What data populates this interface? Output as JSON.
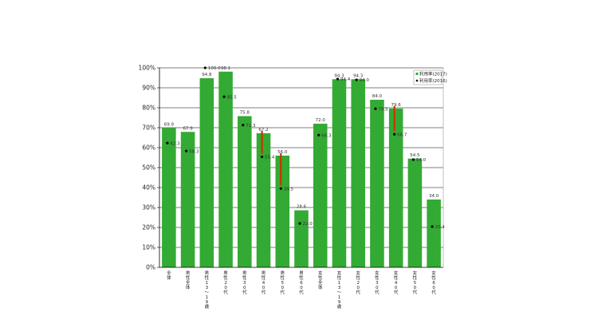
{
  "chart_data": {
    "type": "bar",
    "title": "",
    "xlabel": "",
    "ylabel": "",
    "ylim": [
      0,
      100
    ],
    "yticks": [
      "0%",
      "10%",
      "20%",
      "30%",
      "40%",
      "50%",
      "60%",
      "70%",
      "80%",
      "90%",
      "100%"
    ],
    "grid": true,
    "legend_position": "top-right",
    "categories": [
      "全体",
      "男性全体",
      "男性13〜19歳",
      "男性20代",
      "男性30代",
      "男性40代",
      "男性50代",
      "男性60代",
      "女性全体",
      "女性13〜19歳",
      "女性20代",
      "女性30代",
      "女性40代",
      "女性50代",
      "女性60代"
    ],
    "series": [
      {
        "name": "利用率(2017)",
        "kind": "bar",
        "color": "#33aa33",
        "values": [
          69.9,
          67.9,
          94.8,
          98.1,
          75.8,
          67.2,
          56.0,
          28.6,
          72.0,
          94.3,
          94.3,
          84.0,
          79.6,
          54.5,
          34.0
        ],
        "labels": [
          "69.9",
          "67.9",
          "94.8",
          "98.1",
          "75.8",
          "67.2",
          "56.0",
          "28.6",
          "72.0",
          "94.3",
          "94.3",
          "84.0",
          "79.6",
          "54.5",
          "34.0"
        ]
      },
      {
        "name": "利用率(2016)",
        "kind": "marker",
        "color": "#000000",
        "values": [
          62.3,
          58.3,
          100.0,
          85.5,
          71.3,
          55.4,
          39.5,
          22.0,
          66.3,
          94.4,
          94.0,
          79.5,
          66.7,
          54.0,
          20.4
        ],
        "labels": [
          "62.3",
          "58.3",
          "100.0",
          "85.5",
          "71.3",
          "55.4",
          "39.5",
          "22.0",
          "66.3",
          "94.4",
          "94.0",
          "79.5",
          "66.7",
          "54.0",
          "20.4"
        ]
      }
    ],
    "annotations": [
      {
        "type": "red-line",
        "category_index": 5,
        "from": 55.4,
        "to": 67.2,
        "color": "#cc3300"
      },
      {
        "type": "red-line",
        "category_index": 6,
        "from": 39.5,
        "to": 56.0,
        "color": "#cc3300"
      },
      {
        "type": "red-line",
        "category_index": 12,
        "from": 66.7,
        "to": 79.6,
        "color": "#cc3300"
      }
    ]
  },
  "legend": {
    "items": [
      {
        "symbol": "■",
        "label": "利用率(2017)"
      },
      {
        "symbol": "●",
        "label": "利用率(2016)"
      }
    ]
  }
}
